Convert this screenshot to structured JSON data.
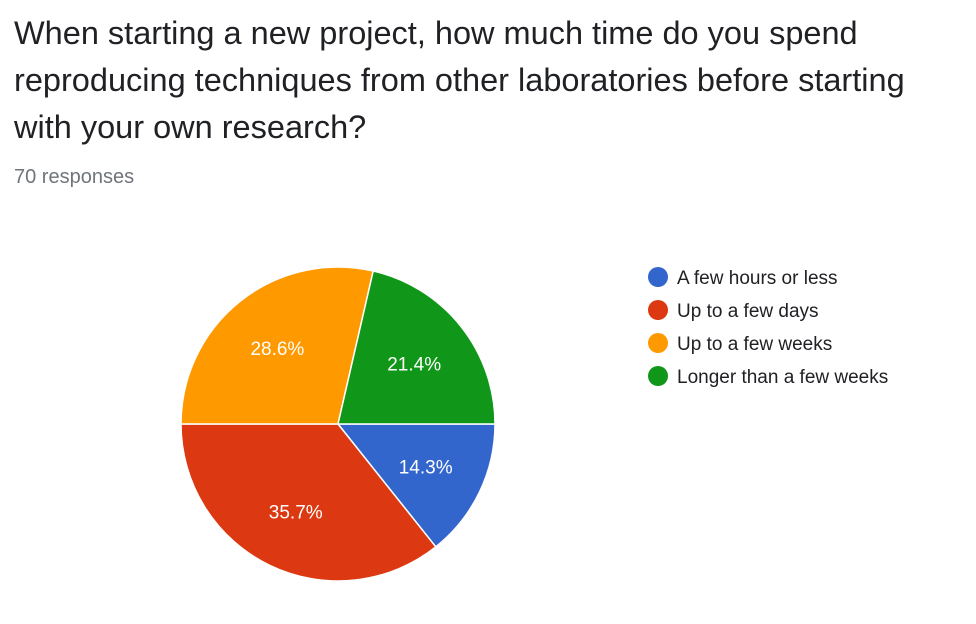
{
  "header": {
    "title": "When starting a new project, how much time do you spend reproducing techniques from other laboratories before starting with your own research?",
    "responses_text": "70 responses"
  },
  "chart_data": {
    "type": "pie",
    "title": "When starting a new project, how much time do you spend reproducing techniques from other laboratories before starting with your own research?",
    "total_responses": 70,
    "legend_position": "right",
    "slices": [
      {
        "label": "A few hours or less",
        "value": 14.3,
        "display": "14.3%",
        "color": "#3366cc"
      },
      {
        "label": "Up to a few days",
        "value": 35.7,
        "display": "35.7%",
        "color": "#dc3912"
      },
      {
        "label": "Up to a few weeks",
        "value": 28.6,
        "display": "28.6%",
        "color": "#ff9900"
      },
      {
        "label": "Longer than a few weeks",
        "value": 21.4,
        "display": "21.4%",
        "color": "#109618"
      }
    ]
  }
}
